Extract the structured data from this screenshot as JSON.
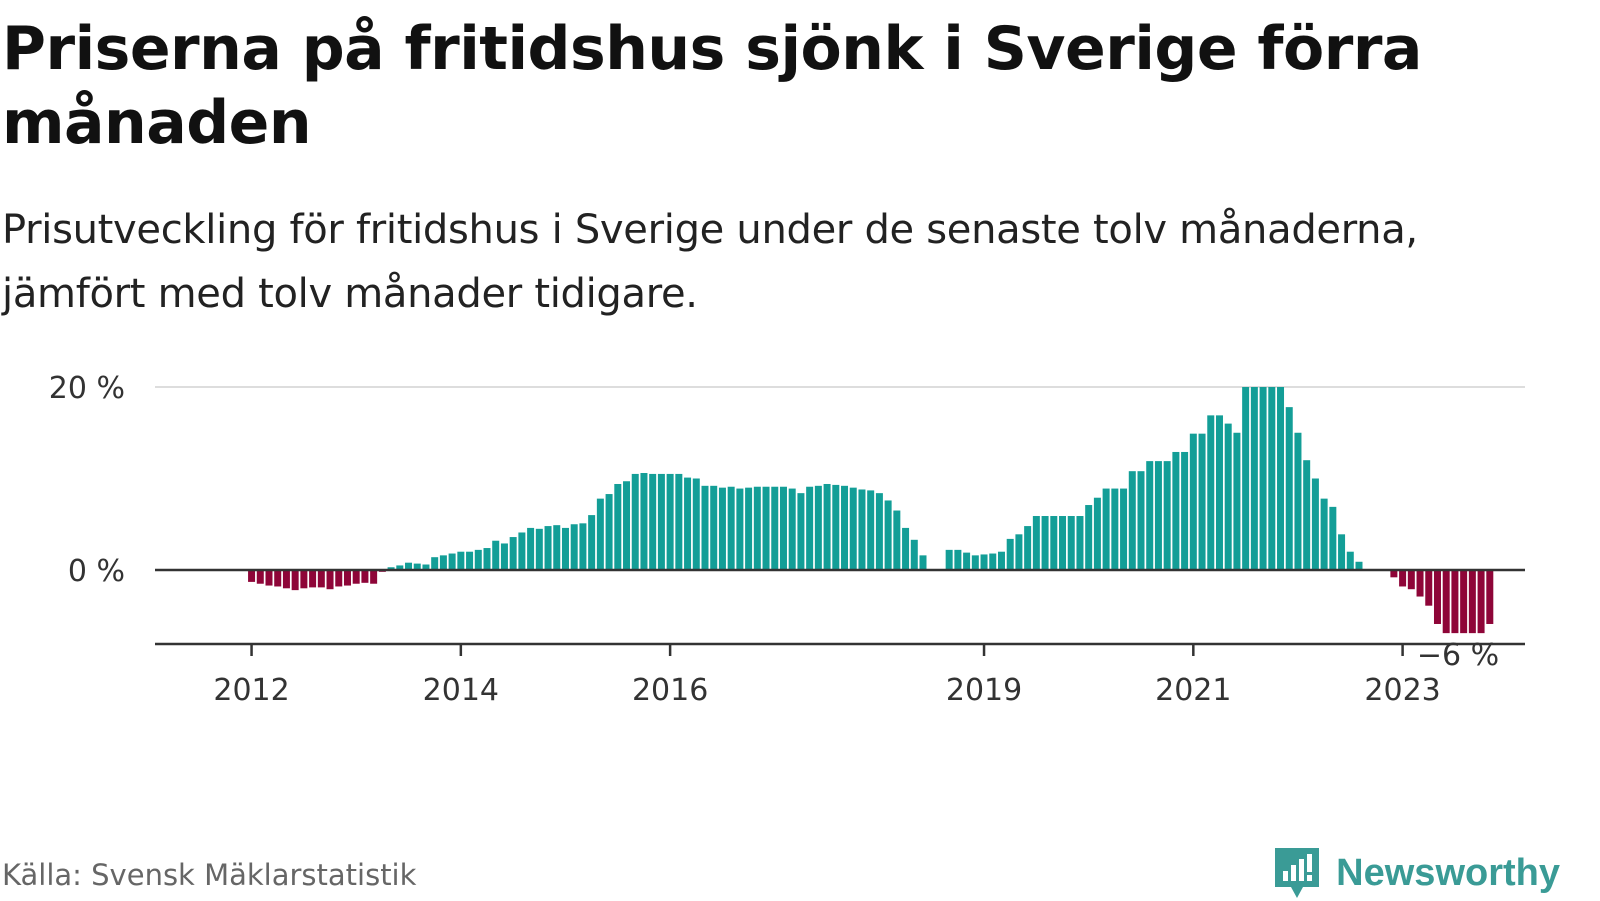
{
  "header": {
    "title": "Priserna på fritidshus sjönk i Sverige förra månaden",
    "subtitle": "Prisutveckling för fritidshus i Sverige under de senaste tolv månaderna, jämfört med tolv månader tidigare."
  },
  "footer": {
    "source": "Källa: Svensk Mäklarstatistik",
    "brand": "Newsworthy"
  },
  "colors": {
    "positive": "#139e97",
    "negative": "#8e0538",
    "grid": "#dddddd",
    "axis": "#333333",
    "brand": "#3a9b96"
  },
  "icons": {
    "brand_logo": "newsworthy-logo-icon"
  },
  "chart_data": {
    "type": "bar",
    "title": "Priserna på fritidshus sjönk i Sverige förra månaden",
    "subtitle": "Prisutveckling för fritidshus i Sverige under de senaste tolv månaderna, jämfört med tolv månader tidigare.",
    "unit": "%",
    "y_ticks": [
      0,
      20
    ],
    "y_tick_labels": [
      "0 %",
      "20 %"
    ],
    "ylim": [
      -8,
      20
    ],
    "x_tick_labels": [
      "2012",
      "2014",
      "2016",
      "2019",
      "2021",
      "2023"
    ],
    "x_tick_positions": [
      "2012-01",
      "2014-01",
      "2016-01",
      "2019-01",
      "2021-01",
      "2023-01"
    ],
    "grid": true,
    "annotation": {
      "text": "−6 %",
      "value": -6,
      "at": "2023-09"
    },
    "series": [
      {
        "values": [
          [
            "2012-01",
            -1.3
          ],
          [
            "2012-02",
            -1.5
          ],
          [
            "2012-03",
            -1.7
          ],
          [
            "2012-04",
            -1.8
          ],
          [
            "2012-05",
            -2.0
          ],
          [
            "2012-06",
            -2.2
          ],
          [
            "2012-07",
            -2.0
          ],
          [
            "2012-08",
            -1.9
          ],
          [
            "2012-09",
            -1.9
          ],
          [
            "2012-10",
            -2.1
          ],
          [
            "2012-11",
            -1.8
          ],
          [
            "2012-12",
            -1.7
          ],
          [
            "2013-01",
            -1.5
          ],
          [
            "2013-02",
            -1.4
          ],
          [
            "2013-03",
            -1.5
          ],
          [
            "2013-04",
            -0.2
          ],
          [
            "2013-05",
            0.3
          ],
          [
            "2013-06",
            0.5
          ],
          [
            "2013-07",
            0.8
          ],
          [
            "2013-08",
            0.7
          ],
          [
            "2013-09",
            0.6
          ],
          [
            "2013-10",
            1.4
          ],
          [
            "2013-11",
            1.6
          ],
          [
            "2013-12",
            1.8
          ],
          [
            "2014-01",
            2.0
          ],
          [
            "2014-02",
            2.0
          ],
          [
            "2014-03",
            2.2
          ],
          [
            "2014-04",
            2.4
          ],
          [
            "2014-05",
            3.2
          ],
          [
            "2014-06",
            2.9
          ],
          [
            "2014-07",
            3.6
          ],
          [
            "2014-08",
            4.1
          ],
          [
            "2014-09",
            4.6
          ],
          [
            "2014-10",
            4.5
          ],
          [
            "2014-11",
            4.8
          ],
          [
            "2014-12",
            4.9
          ],
          [
            "2015-01",
            4.6
          ],
          [
            "2015-02",
            5.0
          ],
          [
            "2015-03",
            5.1
          ],
          [
            "2015-04",
            6.0
          ],
          [
            "2015-05",
            7.8
          ],
          [
            "2015-06",
            8.3
          ],
          [
            "2015-07",
            9.4
          ],
          [
            "2015-08",
            9.7
          ],
          [
            "2015-09",
            10.5
          ],
          [
            "2015-10",
            10.6
          ],
          [
            "2015-11",
            10.5
          ],
          [
            "2015-12",
            10.5
          ],
          [
            "2016-01",
            10.5
          ],
          [
            "2016-02",
            10.5
          ],
          [
            "2016-03",
            10.1
          ],
          [
            "2016-04",
            10.0
          ],
          [
            "2016-05",
            9.2
          ],
          [
            "2016-06",
            9.2
          ],
          [
            "2016-07",
            9.0
          ],
          [
            "2016-08",
            9.1
          ],
          [
            "2016-09",
            8.9
          ],
          [
            "2016-10",
            9.0
          ],
          [
            "2016-11",
            9.1
          ],
          [
            "2016-12",
            9.1
          ],
          [
            "2017-01",
            9.1
          ],
          [
            "2017-02",
            9.1
          ],
          [
            "2017-03",
            8.9
          ],
          [
            "2017-04",
            8.4
          ],
          [
            "2017-05",
            9.1
          ],
          [
            "2017-06",
            9.2
          ],
          [
            "2017-07",
            9.4
          ],
          [
            "2017-08",
            9.3
          ],
          [
            "2017-09",
            9.2
          ],
          [
            "2017-10",
            9.0
          ],
          [
            "2017-11",
            8.8
          ],
          [
            "2017-12",
            8.7
          ],
          [
            "2018-01",
            8.4
          ],
          [
            "2018-02",
            7.6
          ],
          [
            "2018-03",
            6.5
          ],
          [
            "2018-04",
            4.6
          ],
          [
            "2018-05",
            3.3
          ],
          [
            "2018-06",
            1.6
          ],
          [
            "2018-09",
            2.2
          ],
          [
            "2018-10",
            2.2
          ],
          [
            "2018-11",
            1.9
          ],
          [
            "2018-12",
            1.6
          ],
          [
            "2019-01",
            1.7
          ],
          [
            "2019-02",
            1.8
          ],
          [
            "2019-03",
            2.0
          ],
          [
            "2019-04",
            3.4
          ],
          [
            "2019-05",
            3.9
          ],
          [
            "2019-06",
            4.8
          ],
          [
            "2019-07",
            5.9
          ],
          [
            "2019-08",
            5.9
          ],
          [
            "2019-09",
            5.9
          ],
          [
            "2019-10",
            5.9
          ],
          [
            "2019-11",
            5.9
          ],
          [
            "2019-12",
            5.9
          ],
          [
            "2020-01",
            7.1
          ],
          [
            "2020-02",
            7.9
          ],
          [
            "2020-03",
            8.9
          ],
          [
            "2020-04",
            8.9
          ],
          [
            "2020-05",
            8.9
          ],
          [
            "2020-06",
            10.8
          ],
          [
            "2020-07",
            10.8
          ],
          [
            "2020-08",
            11.9
          ],
          [
            "2020-09",
            11.9
          ],
          [
            "2020-10",
            11.9
          ],
          [
            "2020-11",
            12.9
          ],
          [
            "2020-12",
            12.9
          ],
          [
            "2021-01",
            14.9
          ],
          [
            "2021-02",
            14.9
          ],
          [
            "2021-03",
            16.9
          ],
          [
            "2021-04",
            16.9
          ],
          [
            "2021-05",
            16.0
          ],
          [
            "2021-06",
            15.0
          ],
          [
            "2021-07",
            20.0
          ],
          [
            "2021-08",
            20.0
          ],
          [
            "2021-09",
            20.0
          ],
          [
            "2021-10",
            20.0
          ],
          [
            "2021-11",
            20.0
          ],
          [
            "2021-12",
            17.8
          ],
          [
            "2022-01",
            15.0
          ],
          [
            "2022-02",
            12.0
          ],
          [
            "2022-03",
            10.0
          ],
          [
            "2022-04",
            7.8
          ],
          [
            "2022-05",
            6.9
          ],
          [
            "2022-06",
            3.9
          ],
          [
            "2022-07",
            2.0
          ],
          [
            "2022-08",
            0.9
          ],
          [
            "2022-09",
            0.0
          ],
          [
            "2022-10",
            0.0
          ],
          [
            "2022-11",
            0.0
          ],
          [
            "2022-12",
            -0.8
          ],
          [
            "2023-01",
            -1.8
          ],
          [
            "2023-02",
            -2.1
          ],
          [
            "2023-03",
            -2.9
          ],
          [
            "2023-04",
            -3.9
          ],
          [
            "2023-05",
            -5.9
          ],
          [
            "2023-06",
            -6.9
          ],
          [
            "2023-07",
            -6.9
          ],
          [
            "2023-08",
            -6.9
          ],
          [
            "2023-09",
            -6.9
          ],
          [
            "2023-10",
            -6.9
          ],
          [
            "2023-11",
            -5.9
          ]
        ]
      }
    ]
  }
}
